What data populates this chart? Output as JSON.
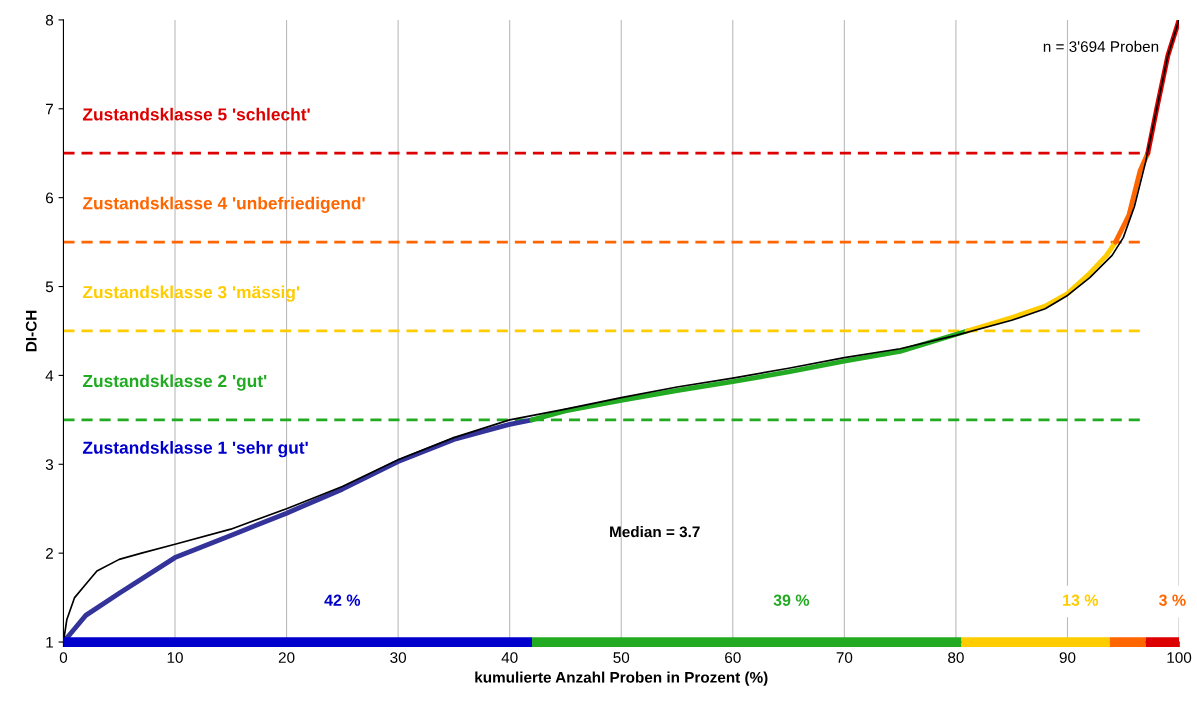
{
  "chart_data": {
    "type": "line",
    "xlabel": "kumulierte Anzahl Proben in Prozent (%)",
    "ylabel": "DI-CH",
    "xlim": [
      0,
      100
    ],
    "ylim": [
      1,
      8
    ],
    "xticks": [
      0,
      10,
      20,
      30,
      40,
      50,
      60,
      70,
      80,
      90,
      100
    ],
    "yticks": [
      1,
      2,
      3,
      4,
      5,
      6,
      7,
      8
    ],
    "grid": "x",
    "series": [
      {
        "color": "#000000",
        "x": [
          0,
          0.3,
          1,
          2,
          3,
          5,
          7,
          10,
          15,
          20,
          25,
          30,
          35,
          40,
          45,
          50,
          55,
          60,
          65,
          70,
          75,
          80,
          85,
          88,
          90,
          92,
          94,
          95,
          96,
          97,
          98,
          99,
          100
        ],
        "values": [
          1.0,
          1.25,
          1.5,
          1.65,
          1.8,
          1.93,
          2.0,
          2.1,
          2.27,
          2.5,
          2.75,
          3.05,
          3.3,
          3.5,
          3.62,
          3.75,
          3.87,
          3.97,
          4.08,
          4.2,
          4.3,
          4.45,
          4.62,
          4.75,
          4.9,
          5.1,
          5.35,
          5.55,
          5.9,
          6.4,
          7.0,
          7.6,
          8.0
        ]
      },
      {
        "color": "#333399",
        "x": [
          0,
          1,
          2,
          5,
          10,
          15,
          20,
          25,
          30,
          35,
          40,
          42
        ],
        "values": [
          1.0,
          1.15,
          1.3,
          1.55,
          1.95,
          2.2,
          2.45,
          2.72,
          3.03,
          3.28,
          3.45,
          3.5
        ]
      },
      {
        "color": "#22aa22",
        "x": [
          42,
          45,
          50,
          55,
          60,
          65,
          70,
          75,
          81
        ],
        "values": [
          3.5,
          3.6,
          3.72,
          3.83,
          3.93,
          4.04,
          4.16,
          4.27,
          4.5
        ]
      },
      {
        "color": "#ffcc00",
        "x": [
          81,
          85,
          88,
          90,
          92,
          93.5,
          94.3
        ],
        "values": [
          4.5,
          4.65,
          4.78,
          4.92,
          5.15,
          5.35,
          5.5
        ]
      },
      {
        "color": "#ff6600",
        "x": [
          94.3,
          95.5,
          96.5,
          97.2
        ],
        "values": [
          5.5,
          5.8,
          6.3,
          6.5
        ]
      },
      {
        "color": "#dd0000",
        "x": [
          97.2,
          98,
          99,
          100
        ],
        "values": [
          6.5,
          7.0,
          7.6,
          8.0
        ]
      },
      {
        "color": "#0000cc",
        "x": [
          0,
          42
        ],
        "values": [
          1,
          1
        ]
      },
      {
        "color": "#22aa22",
        "x": [
          42,
          80.5
        ],
        "values": [
          1,
          1
        ]
      },
      {
        "color": "#ffcc00",
        "x": [
          80.5,
          93.8
        ],
        "values": [
          1,
          1
        ]
      },
      {
        "color": "#ff6600",
        "x": [
          93.8,
          97
        ],
        "values": [
          1,
          1
        ]
      },
      {
        "color": "#dd0000",
        "x": [
          97,
          100
        ],
        "values": [
          1,
          1
        ]
      }
    ],
    "ref_lines": [
      {
        "axis": "y",
        "value": 3.5,
        "label": "Zustandsklasse 2 'gut'",
        "color": "#22aa22",
        "line_style": "dashed"
      },
      {
        "axis": "y",
        "value": 4.5,
        "label": "Zustandsklasse 3 'mässig'",
        "color": "#ffcc00",
        "line_style": "dashed"
      },
      {
        "axis": "y",
        "value": 5.5,
        "label": "Zustandsklasse 4 'unbefriedigend'",
        "color": "#ff6600",
        "line_style": "dashed"
      },
      {
        "axis": "y",
        "value": 6.5,
        "label": "Zustandsklasse 5 'schlecht'",
        "color": "#dd0000",
        "line_style": "dashed"
      }
    ],
    "annotations": [
      "Zustandsklasse 1 'sehr gut'",
      "n = 3'694 Proben",
      "Median = 3.7",
      "42 %",
      "39 %",
      "13 %",
      "3 %"
    ]
  }
}
